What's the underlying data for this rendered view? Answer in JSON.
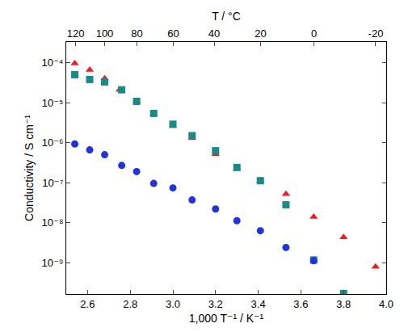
{
  "chart_data": {
    "type": "scatter",
    "x_label": "1,000 T⁻¹ / K⁻¹",
    "x2_label": "T / °C",
    "y_label": "Conductivity / S cm⁻¹",
    "log": "y",
    "grid": false,
    "xlim": [
      2.5,
      4.0
    ],
    "xticks": [
      2.6,
      2.8,
      {
        "value": 3,
        "label": "3.0"
      },
      3.2,
      3.4,
      3.6,
      3.8,
      {
        "value": 4,
        "label": "4.0"
      }
    ],
    "x2lim": [
      2.5,
      4.0
    ],
    "x2ticks": [
      {
        "value": 2.5436,
        "label": "120"
      },
      {
        "value": 2.6799,
        "label": "100"
      },
      {
        "value": 2.8317,
        "label": "80"
      },
      {
        "value": 3.0017,
        "label": "60"
      },
      {
        "value": 3.1934,
        "label": "40"
      },
      {
        "value": 3.4112,
        "label": "20"
      },
      {
        "value": 3.661,
        "label": "0"
      },
      {
        "value": 3.9506,
        "label": "-20"
      }
    ],
    "ylim": [
      1.65e-10,
      0.000329
    ],
    "yticks": [
      {
        "value": 0.0001,
        "label": "10⁻⁴"
      },
      {
        "value": 1e-05,
        "label": "10⁻⁵"
      },
      {
        "value": 1e-06,
        "label": "10⁻⁶"
      },
      {
        "value": 1e-07,
        "label": "10⁻⁷"
      },
      {
        "value": 1e-08,
        "label": "10⁻⁸"
      },
      {
        "value": 1e-09,
        "label": "10⁻⁹"
      }
    ],
    "series": [
      {
        "color": "#ee1c25",
        "marker": "triangle-up",
        "x": [
          2.54,
          2.61,
          2.68,
          2.75,
          2.83,
          2.91,
          3.0,
          3.09,
          3.2,
          3.3,
          3.41,
          3.53,
          3.66,
          3.8,
          3.95
        ],
        "values": [
          9.6e-05,
          6.6e-05,
          4e-05,
          2.1e-05,
          1.08e-05,
          5.2e-06,
          2.6e-06,
          1.3e-06,
          5.2e-07,
          2.3e-07,
          1.12e-07,
          5.2e-08,
          1.4e-08,
          4.3e-09,
          7.9e-10
        ]
      },
      {
        "color": "#1a8a86",
        "marker": "square",
        "x": [
          2.54,
          2.61,
          2.68,
          2.76,
          2.83,
          2.91,
          3.0,
          3.09,
          3.2,
          3.3,
          3.41,
          3.53,
          3.66,
          3.8
        ],
        "values": [
          5e-05,
          3.8e-05,
          3.3e-05,
          2.1e-05,
          1.08e-05,
          5.4e-06,
          2.9e-06,
          1.5e-06,
          6.3e-07,
          2.4e-07,
          1.12e-07,
          2.8e-08,
          1.17e-09,
          1.7e-10
        ]
      },
      {
        "color": "#2233dd",
        "marker": "circle",
        "x": [
          2.54,
          2.61,
          2.68,
          2.76,
          2.83,
          2.91,
          3.0,
          3.09,
          3.2,
          3.3,
          3.41,
          3.53,
          3.66
        ],
        "values": [
          9.3e-07,
          6.6e-07,
          5e-07,
          2.7e-07,
          1.9e-07,
          9.6e-08,
          7.4e-08,
          3.7e-08,
          2.2e-08,
          1.12e-08,
          6.3e-09,
          2.4e-09,
          1.12e-09
        ]
      }
    ]
  }
}
